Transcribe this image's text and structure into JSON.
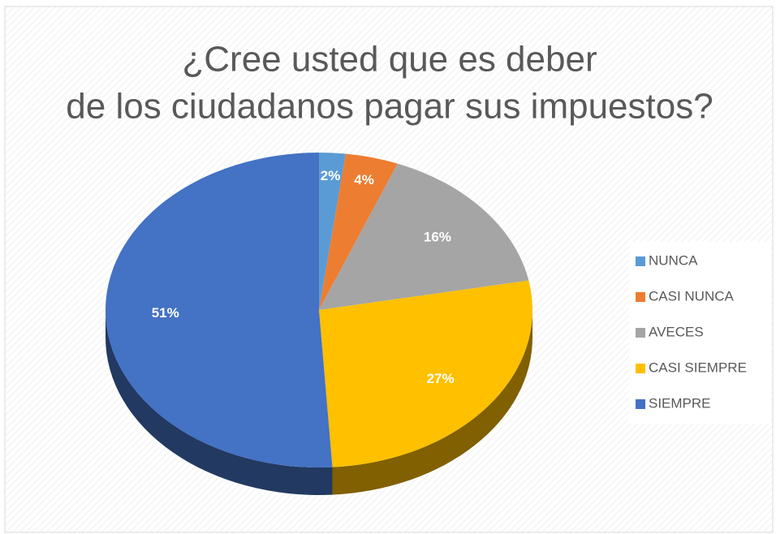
{
  "chart_data": {
    "type": "pie",
    "title": "¿Cree usted que es deber de los ciudadanos pagar sus impuestos?",
    "categories": [
      "NUNCA",
      "CASI NUNCA",
      "AVECES",
      "CASI SIEMPRE",
      "SIEMPRE"
    ],
    "values": [
      2,
      4,
      16,
      27,
      51
    ],
    "value_labels": [
      "2%",
      "4%",
      "16%",
      "27%",
      "51%"
    ],
    "colors": [
      "#5b9bd5",
      "#ed7d31",
      "#a5a5a5",
      "#ffc000",
      "#4472c4"
    ],
    "legend": "right"
  }
}
